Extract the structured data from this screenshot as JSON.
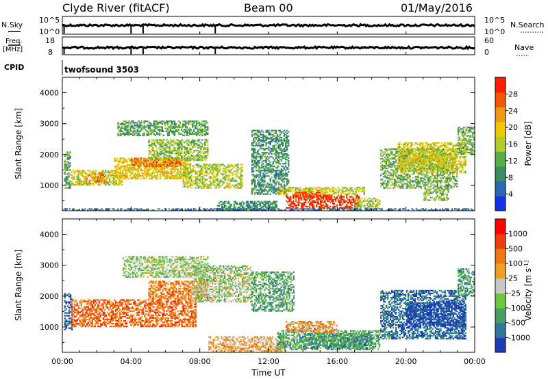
{
  "header": {
    "title": "Clyde River (fitACF)",
    "beam": "Beam 00",
    "date": "01/May/2016"
  },
  "params": {
    "nsky_label": "N.Sky",
    "nsky_ticks": [
      "10^5",
      "10^0"
    ],
    "nsearch_label": "N.Search",
    "nsearch_ticks": [
      "10^5",
      "10^0"
    ],
    "freq_label": "Freq.",
    "freq_unit": "[MHz]",
    "freq_ticks": [
      "18",
      "8"
    ],
    "nave_label": "Nave",
    "nave_ticks": [
      "60",
      "0"
    ],
    "cpid_label": "CPID",
    "cpid_value": "twofsound 3503"
  },
  "chart_data": [
    {
      "type": "heatmap",
      "name": "power",
      "xlabel": "",
      "ylabel": "Slant Range [km]",
      "xlim": [
        0,
        24
      ],
      "ylim": [
        180,
        4500
      ],
      "y_ticks": [
        "4000",
        "3000",
        "2000",
        "1000"
      ],
      "colorbar": {
        "label": "Power [dB]",
        "ticks": [
          "28",
          "24",
          "20",
          "16",
          "12",
          "8",
          "4"
        ],
        "colors": [
          "#1432e6",
          "#2868b4",
          "#3c8c64",
          "#5aac46",
          "#b4cc2a",
          "#f0c800",
          "#f09a14",
          "#f05a00",
          "#ff1e00"
        ]
      },
      "regions": [
        {
          "t0": 0.1,
          "t1": 0.5,
          "r0": 900,
          "r1": 2100,
          "level": 0.35
        },
        {
          "t0": 0.5,
          "t1": 3.5,
          "r0": 1000,
          "r1": 1500,
          "level": 0.55
        },
        {
          "t0": 1.3,
          "t1": 2.5,
          "r0": 1100,
          "r1": 1400,
          "level": 0.75
        },
        {
          "t0": 3.0,
          "t1": 7.5,
          "r0": 1200,
          "r1": 1900,
          "level": 0.6
        },
        {
          "t0": 4.0,
          "t1": 7.0,
          "r0": 1600,
          "r1": 1900,
          "level": 0.8
        },
        {
          "t0": 3.2,
          "t1": 8.5,
          "r0": 2600,
          "r1": 3100,
          "level": 0.35
        },
        {
          "t0": 5.0,
          "t1": 8.5,
          "r0": 1800,
          "r1": 2500,
          "level": 0.45
        },
        {
          "t0": 7.0,
          "t1": 10.5,
          "r0": 900,
          "r1": 1700,
          "level": 0.5
        },
        {
          "t0": 9.0,
          "t1": 12.5,
          "r0": 180,
          "r1": 500,
          "level": 0.3
        },
        {
          "t0": 11.0,
          "t1": 13.2,
          "r0": 700,
          "r1": 2800,
          "level": 0.3
        },
        {
          "t0": 12.5,
          "t1": 17.6,
          "r0": 700,
          "r1": 950,
          "level": 0.55
        },
        {
          "t0": 13.0,
          "t1": 17.3,
          "r0": 250,
          "r1": 700,
          "level": 0.95
        },
        {
          "t0": 13.5,
          "t1": 15.0,
          "r0": 600,
          "r1": 800,
          "level": 0.88
        },
        {
          "t0": 17.0,
          "t1": 18.5,
          "r0": 250,
          "r1": 600,
          "level": 0.5
        },
        {
          "t0": 18.5,
          "t1": 23.0,
          "r0": 900,
          "r1": 2200,
          "level": 0.4
        },
        {
          "t0": 19.5,
          "t1": 23.5,
          "r0": 1400,
          "r1": 2400,
          "level": 0.55
        },
        {
          "t0": 21.0,
          "t1": 22.5,
          "r0": 500,
          "r1": 900,
          "level": 0.45
        },
        {
          "t0": 23.0,
          "t1": 24.0,
          "r0": 2000,
          "r1": 2900,
          "level": 0.4
        },
        {
          "t0": 0.0,
          "t1": 24.0,
          "r0": 180,
          "r1": 260,
          "level": 0.2
        }
      ]
    },
    {
      "type": "heatmap",
      "name": "velocity",
      "xlabel": "Time UT",
      "ylabel": "Slant Range [km]",
      "xlim": [
        0,
        24
      ],
      "ylim": [
        180,
        4500
      ],
      "x_ticks": [
        "00:00",
        "04:00",
        "08:00",
        "12:00",
        "16:00",
        "20:00",
        "00:00"
      ],
      "y_ticks": [
        "4000",
        "3000",
        "2000",
        "1000"
      ],
      "colorbar": {
        "label": "Velocity [m s^-1]",
        "ticks": [
          "1000",
          "500",
          "100",
          "25",
          "-25",
          "-100",
          "-500",
          "-1000"
        ],
        "colors": [
          "#1e3cb4",
          "#32789c",
          "#46a064",
          "#6ec83c",
          "#c8c8c8",
          "#f0a020",
          "#f07814",
          "#f03c0a",
          "#ff0000"
        ]
      },
      "regions": [
        {
          "t0": 0.1,
          "t1": 0.6,
          "r0": 900,
          "r1": 2100,
          "level": 0.1
        },
        {
          "t0": 0.5,
          "t1": 7.8,
          "r0": 1000,
          "r1": 1900,
          "level": 0.75
        },
        {
          "t0": 3.5,
          "t1": 8.5,
          "r0": 2600,
          "r1": 3300,
          "level": 0.45
        },
        {
          "t0": 5.0,
          "t1": 8.5,
          "r0": 1900,
          "r1": 2500,
          "level": 0.7
        },
        {
          "t0": 7.5,
          "t1": 11.0,
          "r0": 1800,
          "r1": 3000,
          "level": 0.45
        },
        {
          "t0": 8.5,
          "t1": 13.0,
          "r0": 200,
          "r1": 700,
          "level": 0.6
        },
        {
          "t0": 11.0,
          "t1": 13.5,
          "r0": 1500,
          "r1": 2800,
          "level": 0.3
        },
        {
          "t0": 12.5,
          "t1": 18.5,
          "r0": 250,
          "r1": 900,
          "level": 0.3
        },
        {
          "t0": 14.0,
          "t1": 18.0,
          "r0": 300,
          "r1": 800,
          "level": 0.25
        },
        {
          "t0": 13.0,
          "t1": 16.0,
          "r0": 800,
          "r1": 1200,
          "level": 0.65
        },
        {
          "t0": 18.5,
          "t1": 23.5,
          "r0": 600,
          "r1": 2200,
          "level": 0.15
        },
        {
          "t0": 20.0,
          "t1": 23.5,
          "r0": 1000,
          "r1": 1800,
          "level": 0.05
        },
        {
          "t0": 23.0,
          "t1": 24.0,
          "r0": 2000,
          "r1": 2900,
          "level": 0.25
        }
      ]
    }
  ]
}
